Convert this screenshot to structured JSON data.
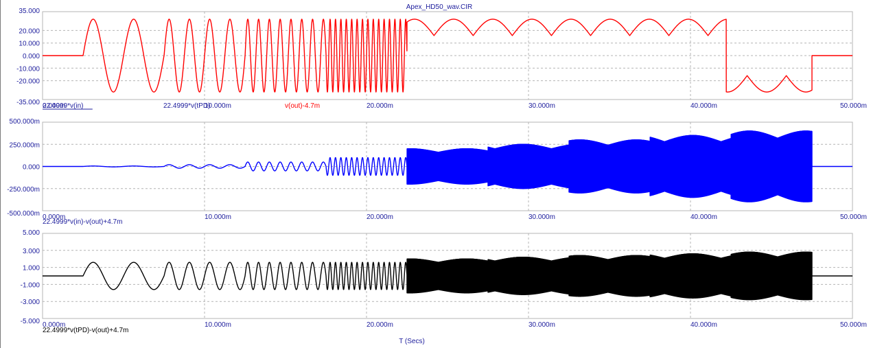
{
  "window": {
    "title": "Apex_HD50_wav.CIR"
  },
  "x_axis_title": "T (Secs)",
  "colors": {
    "background": "#ffffff",
    "grid": "#b4b4b4",
    "axis_text": "#1c1c9c",
    "plot_red": "#ff0000",
    "plot_blue": "#0000ff",
    "plot_black": "#000000"
  },
  "chart_data": [
    {
      "type": "line",
      "x_unit": "s",
      "xlim": [
        0,
        0.05
      ],
      "xticks": [
        "0.000m",
        "10.000m",
        "20.000m",
        "30.000m",
        "40.000m",
        "50.000m"
      ],
      "ylim": [
        -35,
        35
      ],
      "yticks": [
        "35.000",
        "20.000",
        "10.000",
        "0.000",
        "-10.000",
        "-20.000",
        "-35.000"
      ],
      "grid": true,
      "signal": {
        "start": 0.0025,
        "end": 0.0475,
        "amplitude": 29,
        "offset": 0
      },
      "series": [
        {
          "name": "22.4999*v(in)",
          "color": "#1c1c9c"
        },
        {
          "name": "22.4999*v(tPD)",
          "color": "#1c1c9c"
        },
        {
          "name": "v(out)-4.7m",
          "color": "#ff0000"
        }
      ]
    },
    {
      "type": "line",
      "x_unit": "s",
      "xlim": [
        0,
        0.05
      ],
      "xticks": [
        "0.000m",
        "10.000m",
        "20.000m",
        "30.000m",
        "40.000m",
        "50.000m"
      ],
      "ylim": [
        -0.5,
        0.5
      ],
      "yticks": [
        "500.000m",
        "250.000m",
        "0.000",
        "-250.000m",
        "-500.000m"
      ],
      "grid": true,
      "envelope_steps": [
        {
          "t0": 0.0025,
          "amp": 0.005
        },
        {
          "t0": 0.0075,
          "amp": 0.02
        },
        {
          "t0": 0.0125,
          "amp": 0.05
        },
        {
          "t0": 0.0175,
          "amp": 0.1
        },
        {
          "t0": 0.0225,
          "amp": 0.2
        },
        {
          "t0": 0.0275,
          "amp": 0.25
        },
        {
          "t0": 0.0325,
          "amp": 0.3
        },
        {
          "t0": 0.0375,
          "amp": 0.35
        },
        {
          "t0": 0.0425,
          "amp": 0.4
        }
      ],
      "signal_end": 0.0475,
      "series": [
        {
          "name": "22.4999*v(in)-v(out)+4.7m",
          "color": "#1c1c9c"
        }
      ]
    },
    {
      "type": "line",
      "x_unit": "s",
      "xlim": [
        0,
        0.05
      ],
      "xticks": [
        "0.000m",
        "10.000m",
        "20.000m",
        "30.000m",
        "40.000m",
        "50.000m"
      ],
      "ylim": [
        -5,
        5
      ],
      "yticks": [
        "5.000",
        "3.000",
        "1.000",
        "-1.000",
        "-3.000",
        "-5.000"
      ],
      "grid": true,
      "envelope_steps": [
        {
          "t0": 0.0025,
          "amp": 1.6
        },
        {
          "t0": 0.0225,
          "amp": 2.0
        },
        {
          "t0": 0.0275,
          "amp": 2.2
        },
        {
          "t0": 0.0325,
          "amp": 2.4
        },
        {
          "t0": 0.0375,
          "amp": 2.6
        },
        {
          "t0": 0.0425,
          "amp": 2.8
        }
      ],
      "signal_end": 0.0475,
      "series": [
        {
          "name": "22.4999*v(tPD)-v(out)+4.7m",
          "color": "#000000"
        }
      ]
    }
  ]
}
